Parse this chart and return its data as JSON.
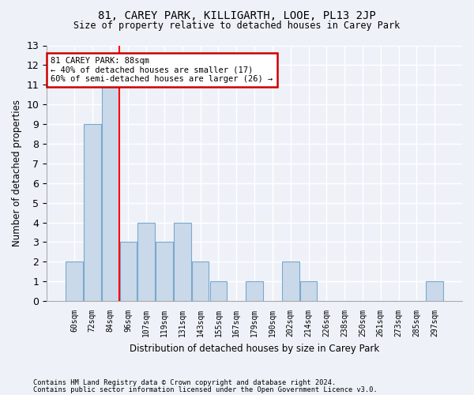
{
  "title": "81, CAREY PARK, KILLIGARTH, LOOE, PL13 2JP",
  "subtitle": "Size of property relative to detached houses in Carey Park",
  "xlabel": "Distribution of detached houses by size in Carey Park",
  "ylabel": "Number of detached properties",
  "categories": [
    "60sqm",
    "72sqm",
    "84sqm",
    "96sqm",
    "107sqm",
    "119sqm",
    "131sqm",
    "143sqm",
    "155sqm",
    "167sqm",
    "179sqm",
    "190sqm",
    "202sqm",
    "214sqm",
    "226sqm",
    "238sqm",
    "250sqm",
    "261sqm",
    "273sqm",
    "285sqm",
    "297sqm"
  ],
  "values": [
    2,
    9,
    11,
    3,
    4,
    3,
    4,
    2,
    1,
    0,
    1,
    0,
    2,
    1,
    0,
    0,
    0,
    0,
    0,
    0,
    1
  ],
  "bar_color": "#c9d9ea",
  "bar_edgecolor": "#7aa8cc",
  "red_line_x": 2.5,
  "annotation_title": "81 CAREY PARK: 88sqm",
  "annotation_line1": "← 40% of detached houses are smaller (17)",
  "annotation_line2": "60% of semi-detached houses are larger (26) →",
  "annotation_box_color": "#ffffff",
  "annotation_box_edgecolor": "#cc0000",
  "ylim": [
    0,
    13
  ],
  "yticks": [
    0,
    1,
    2,
    3,
    4,
    5,
    6,
    7,
    8,
    9,
    10,
    11,
    12,
    13
  ],
  "background_color": "#eef2f8",
  "grid_color": "#ffffff",
  "footer_line1": "Contains HM Land Registry data © Crown copyright and database right 2024.",
  "footer_line2": "Contains public sector information licensed under the Open Government Licence v3.0."
}
